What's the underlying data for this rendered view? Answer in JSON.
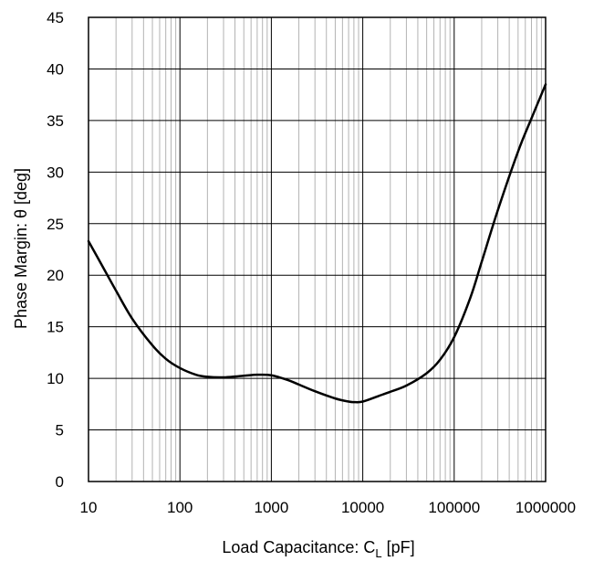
{
  "chart_data": {
    "type": "line",
    "xscale": "log",
    "xlim": [
      10,
      1000000
    ],
    "ylim": [
      0,
      45
    ],
    "xticks": [
      "10",
      "100",
      "1000",
      "10000",
      "100000",
      "1000000"
    ],
    "yticks": [
      "0",
      "5",
      "10",
      "15",
      "20",
      "25",
      "30",
      "35",
      "40",
      "45"
    ],
    "xlabel": {
      "main": "Load Capacitance: C",
      "sub": "L",
      "unit": " [pF]"
    },
    "ylabel": "Phase Margin: θ [deg]",
    "grid": true,
    "series": [
      {
        "color": "#000000",
        "x": [
          10,
          15,
          20,
          30,
          50,
          70,
          100,
          150,
          200,
          300,
          500,
          700,
          1000,
          1500,
          2000,
          3000,
          5000,
          7000,
          8000,
          10000,
          15000,
          20000,
          30000,
          50000,
          70000,
          100000,
          150000,
          200000,
          300000,
          500000,
          700000,
          1000000
        ],
        "y": [
          23.3,
          20.5,
          18.5,
          15.8,
          13.2,
          11.9,
          11.0,
          10.35,
          10.15,
          10.1,
          10.25,
          10.35,
          10.3,
          9.85,
          9.4,
          8.75,
          8.05,
          7.75,
          7.7,
          7.75,
          8.3,
          8.7,
          9.3,
          10.5,
          11.8,
          14.0,
          17.8,
          21.3,
          26.3,
          32.0,
          35.2,
          38.5
        ]
      }
    ]
  }
}
